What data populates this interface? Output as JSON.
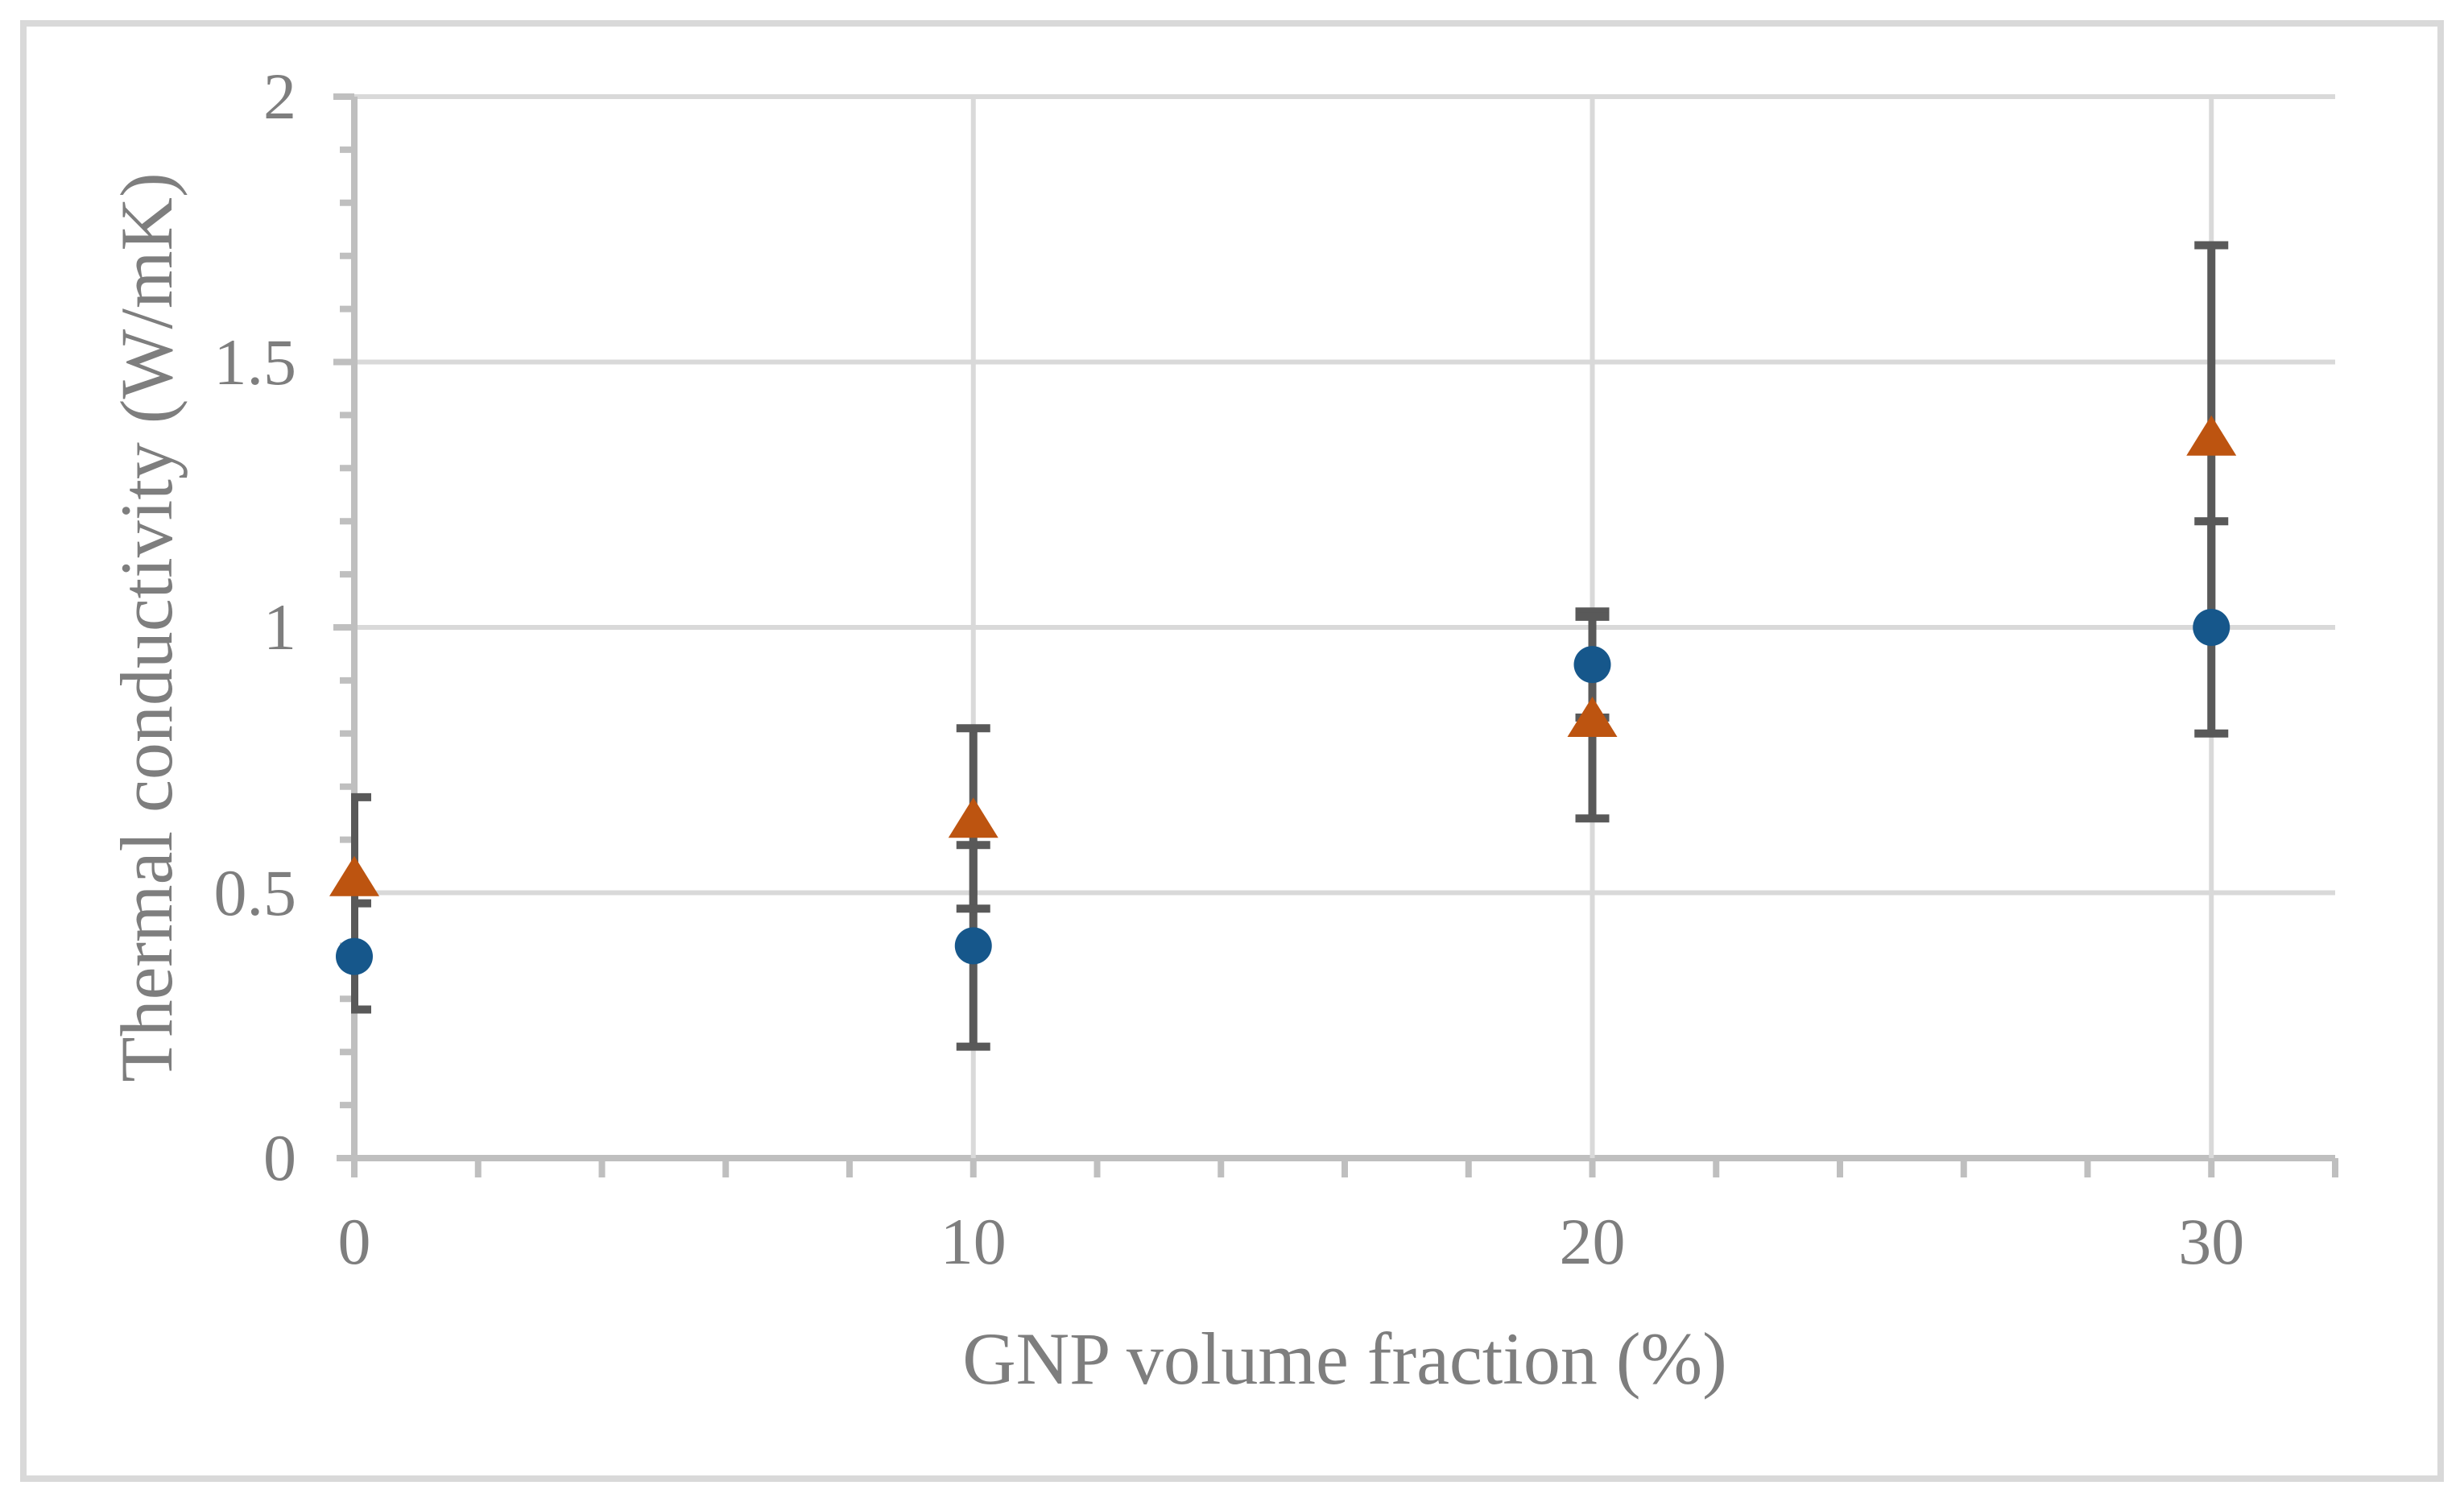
{
  "chart_data": {
    "type": "scatter",
    "title": "",
    "xlabel": "GNP volume fraction (%)",
    "ylabel": "Thermal conductivity (W/mK)",
    "xlim": [
      0,
      32
    ],
    "ylim": [
      0,
      2
    ],
    "x_ticks": [
      0,
      10,
      20,
      30
    ],
    "x_tick_labels": [
      "0",
      "10",
      "20",
      "30"
    ],
    "x_minor_tick_step": 2,
    "y_ticks": [
      0,
      0.5,
      1,
      1.5,
      2
    ],
    "y_tick_labels": [
      "0",
      "0.5",
      "1",
      "1.5",
      "2"
    ],
    "y_minor_tick_step": 0.1,
    "grid": "horizontal-major",
    "legend": "none",
    "series": [
      {
        "name": "circle-series",
        "marker": "circle",
        "color": "#16578B",
        "x": [
          0,
          10,
          20,
          30
        ],
        "y": [
          0.38,
          0.4,
          0.93,
          1.0
        ],
        "yerr": [
          0.1,
          0.19,
          0.1,
          0.2
        ]
      },
      {
        "name": "triangle-series",
        "marker": "triangle",
        "color": "#BD5410",
        "x": [
          0,
          10,
          20,
          30
        ],
        "y": [
          0.53,
          0.64,
          0.83,
          1.36
        ],
        "yerr": [
          0.15,
          0.17,
          0.19,
          0.36
        ]
      }
    ],
    "colors": {
      "error_bar": "#595959",
      "gridline": "#D9D9D9",
      "axis_line": "#BFBFBF",
      "tick_text": "#7E7E7E",
      "figure_border": "#D9D9D9",
      "background": "#FFFFFF"
    }
  }
}
